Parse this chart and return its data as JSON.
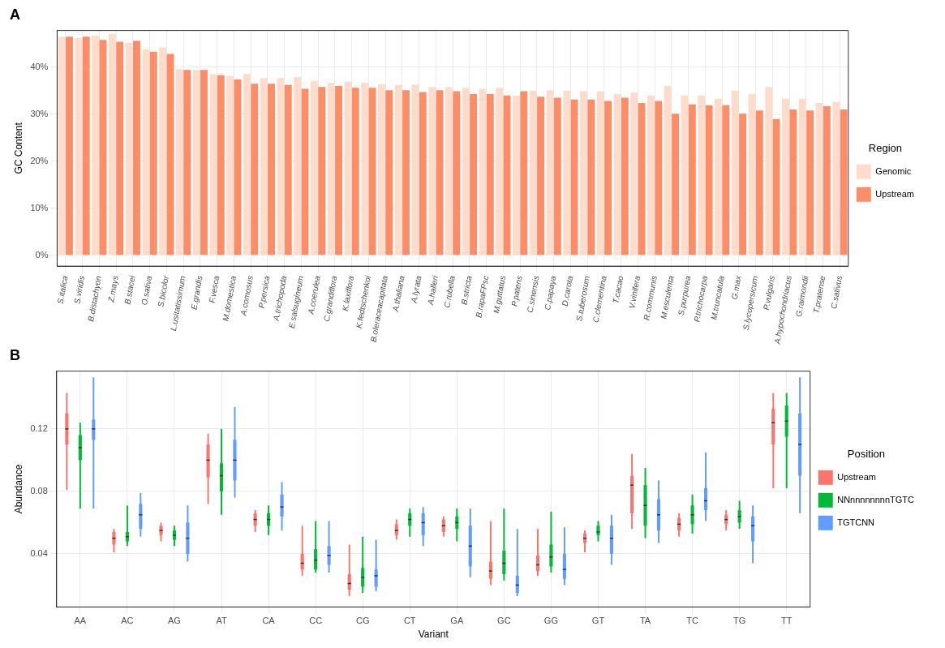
{
  "chart_data": [
    {
      "type": "bar",
      "title": "A",
      "ylabel": "GC Content",
      "legend_title": "Region",
      "legend": "right",
      "grid": true,
      "categories": [
        "S.italica",
        "S.viridis",
        "B.distachyon",
        "Z.mays",
        "B.stacei",
        "O.sativa",
        "S.bicolor",
        "L.usitatissimum",
        "E.grandis",
        "F.vesca",
        "M.domestica",
        "A.comosus",
        "P.persica",
        "A.trichopoda",
        "E.salsugineum",
        "A.coerulea",
        "C.grandiflora",
        "K.laxiflora",
        "K.fedtschenkoi",
        "B.oleraceacapitata",
        "A.thaliana",
        "A.lyrata",
        "A.halleri",
        "C.rubella",
        "B.stricta",
        "B.rapaFPsc",
        "M.guttatus",
        "P.patens",
        "C.sinensis",
        "C.papaya",
        "D.carota",
        "S.tuberosum",
        "C.clementina",
        "T.cacao",
        "V.vinifera",
        "R.communis",
        "M.esculenta",
        "S.purpurea",
        "P.trichocarpa",
        "M.truncatula",
        "G.max",
        "S.lycopersicum",
        "P.vulgaris",
        "A.hypochondriacus",
        "G.raimondii",
        "T.pratense",
        "C.sativus"
      ],
      "ylim": [
        -2.3,
        47.8
      ],
      "yticks": [
        {
          "value": 0,
          "label": "0%"
        },
        {
          "value": 10,
          "label": "10%"
        },
        {
          "value": 20,
          "label": "20%"
        },
        {
          "value": 30,
          "label": "30%"
        },
        {
          "value": 40,
          "label": "40%"
        }
      ],
      "series": [
        {
          "name": "Genomic",
          "color": "#fddccc",
          "values": [
            46.5,
            46.2,
            46.7,
            47.1,
            45.2,
            43.8,
            44.2,
            39.6,
            39.4,
            38.5,
            38.1,
            38.5,
            37.7,
            37.7,
            37.9,
            37.1,
            36.7,
            36.9,
            36.7,
            36.4,
            36.2,
            36.3,
            35.8,
            35.8,
            35.6,
            35.4,
            35.6,
            34.0,
            35.0,
            35.1,
            35.0,
            34.9,
            34.9,
            34.3,
            34.6,
            34.0,
            36.0,
            34.0,
            34.0,
            33.3,
            35.0,
            34.3,
            35.8,
            33.3,
            33.3,
            32.4,
            32.6
          ]
        },
        {
          "name": "Upstream",
          "color": "#fc8d66",
          "values": [
            46.5,
            46.5,
            45.8,
            45.4,
            45.6,
            43.3,
            42.8,
            39.4,
            39.4,
            38.3,
            37.4,
            36.5,
            36.5,
            36.2,
            35.4,
            35.8,
            36.0,
            35.6,
            35.6,
            35.1,
            35.1,
            34.7,
            35.1,
            34.9,
            34.3,
            34.3,
            34.0,
            34.9,
            33.7,
            33.5,
            33.1,
            33.1,
            32.8,
            33.5,
            32.4,
            32.8,
            30.1,
            32.1,
            31.9,
            31.9,
            30.1,
            30.8,
            29.0,
            31.0,
            30.8,
            31.7,
            31.0
          ]
        }
      ]
    },
    {
      "type": "box",
      "title": "B",
      "xlabel": "Variant",
      "ylabel": "Abundance",
      "legend_title": "Position",
      "legend": "right",
      "grid": true,
      "categories": [
        "AA",
        "AC",
        "AG",
        "AT",
        "CA",
        "CC",
        "CG",
        "CT",
        "GA",
        "GC",
        "GG",
        "GT",
        "TA",
        "TC",
        "TG",
        "TT"
      ],
      "ylim": [
        0.006,
        0.157
      ],
      "yticks": [
        0.04,
        0.08,
        0.12
      ],
      "series": [
        {
          "name": "Upstream",
          "color": "#f8766d",
          "boxes": [
            {
              "low": 0.081,
              "q1": 0.11,
              "median": 0.12,
              "q3": 0.13,
              "high": 0.143
            },
            {
              "low": 0.041,
              "q1": 0.046,
              "median": 0.05,
              "q3": 0.054,
              "high": 0.056
            },
            {
              "low": 0.048,
              "q1": 0.052,
              "median": 0.055,
              "q3": 0.058,
              "high": 0.06
            },
            {
              "low": 0.072,
              "q1": 0.089,
              "median": 0.1,
              "q3": 0.11,
              "high": 0.117
            },
            {
              "low": 0.054,
              "q1": 0.058,
              "median": 0.062,
              "q3": 0.066,
              "high": 0.068
            },
            {
              "low": 0.026,
              "q1": 0.03,
              "median": 0.034,
              "q3": 0.04,
              "high": 0.058
            },
            {
              "low": 0.013,
              "q1": 0.017,
              "median": 0.021,
              "q3": 0.027,
              "high": 0.046
            },
            {
              "low": 0.049,
              "q1": 0.052,
              "median": 0.055,
              "q3": 0.059,
              "high": 0.062
            },
            {
              "low": 0.051,
              "q1": 0.054,
              "median": 0.058,
              "q3": 0.062,
              "high": 0.064
            },
            {
              "low": 0.02,
              "q1": 0.024,
              "median": 0.029,
              "q3": 0.035,
              "high": 0.061
            },
            {
              "low": 0.026,
              "q1": 0.029,
              "median": 0.033,
              "q3": 0.039,
              "high": 0.056
            },
            {
              "low": 0.041,
              "q1": 0.047,
              "median": 0.05,
              "q3": 0.053,
              "high": 0.055
            },
            {
              "low": 0.056,
              "q1": 0.066,
              "median": 0.084,
              "q3": 0.09,
              "high": 0.104
            },
            {
              "low": 0.051,
              "q1": 0.055,
              "median": 0.059,
              "q3": 0.063,
              "high": 0.066
            },
            {
              "low": 0.055,
              "q1": 0.059,
              "median": 0.062,
              "q3": 0.065,
              "high": 0.068
            },
            {
              "low": 0.082,
              "q1": 0.11,
              "median": 0.124,
              "q3": 0.133,
              "high": 0.143
            }
          ]
        },
        {
          "name": "NNnnnnnnnnTGTC",
          "color": "#00ba38",
          "boxes": [
            {
              "low": 0.069,
              "q1": 0.1,
              "median": 0.108,
              "q3": 0.116,
              "high": 0.124
            },
            {
              "low": 0.045,
              "q1": 0.048,
              "median": 0.051,
              "q3": 0.054,
              "high": 0.071
            },
            {
              "low": 0.045,
              "q1": 0.049,
              "median": 0.052,
              "q3": 0.055,
              "high": 0.058
            },
            {
              "low": 0.065,
              "q1": 0.08,
              "median": 0.09,
              "q3": 0.098,
              "high": 0.12
            },
            {
              "low": 0.052,
              "q1": 0.058,
              "median": 0.062,
              "q3": 0.066,
              "high": 0.071
            },
            {
              "low": 0.028,
              "q1": 0.03,
              "median": 0.036,
              "q3": 0.043,
              "high": 0.061
            },
            {
              "low": 0.015,
              "q1": 0.019,
              "median": 0.025,
              "q3": 0.031,
              "high": 0.051
            },
            {
              "low": 0.051,
              "q1": 0.058,
              "median": 0.062,
              "q3": 0.066,
              "high": 0.069
            },
            {
              "low": 0.048,
              "q1": 0.056,
              "median": 0.06,
              "q3": 0.064,
              "high": 0.069
            },
            {
              "low": 0.023,
              "q1": 0.027,
              "median": 0.034,
              "q3": 0.042,
              "high": 0.069
            },
            {
              "low": 0.028,
              "q1": 0.032,
              "median": 0.038,
              "q3": 0.046,
              "high": 0.067
            },
            {
              "low": 0.048,
              "q1": 0.052,
              "median": 0.054,
              "q3": 0.058,
              "high": 0.061
            },
            {
              "low": 0.05,
              "q1": 0.058,
              "median": 0.071,
              "q3": 0.084,
              "high": 0.095
            },
            {
              "low": 0.053,
              "q1": 0.059,
              "median": 0.065,
              "q3": 0.071,
              "high": 0.078
            },
            {
              "low": 0.056,
              "q1": 0.06,
              "median": 0.064,
              "q3": 0.068,
              "high": 0.074
            },
            {
              "low": 0.082,
              "q1": 0.115,
              "median": 0.125,
              "q3": 0.135,
              "high": 0.143
            }
          ]
        },
        {
          "name": "TGTCNN",
          "color": "#619cff",
          "boxes": [
            {
              "low": 0.069,
              "q1": 0.113,
              "median": 0.12,
              "q3": 0.126,
              "high": 0.153
            },
            {
              "low": 0.051,
              "q1": 0.056,
              "median": 0.065,
              "q3": 0.072,
              "high": 0.079
            },
            {
              "low": 0.035,
              "q1": 0.04,
              "median": 0.05,
              "q3": 0.06,
              "high": 0.071
            },
            {
              "low": 0.076,
              "q1": 0.087,
              "median": 0.1,
              "q3": 0.113,
              "high": 0.134
            },
            {
              "low": 0.055,
              "q1": 0.064,
              "median": 0.07,
              "q3": 0.078,
              "high": 0.086
            },
            {
              "low": 0.028,
              "q1": 0.033,
              "median": 0.039,
              "q3": 0.045,
              "high": 0.061
            },
            {
              "low": 0.016,
              "q1": 0.019,
              "median": 0.026,
              "q3": 0.03,
              "high": 0.049
            },
            {
              "low": 0.045,
              "q1": 0.052,
              "median": 0.06,
              "q3": 0.066,
              "high": 0.07
            },
            {
              "low": 0.025,
              "q1": 0.032,
              "median": 0.045,
              "q3": 0.058,
              "high": 0.069
            },
            {
              "low": 0.013,
              "q1": 0.015,
              "median": 0.02,
              "q3": 0.026,
              "high": 0.056
            },
            {
              "low": 0.02,
              "q1": 0.024,
              "median": 0.03,
              "q3": 0.04,
              "high": 0.057
            },
            {
              "low": 0.033,
              "q1": 0.04,
              "median": 0.05,
              "q3": 0.058,
              "high": 0.065
            },
            {
              "low": 0.047,
              "q1": 0.055,
              "median": 0.065,
              "q3": 0.075,
              "high": 0.087
            },
            {
              "low": 0.061,
              "q1": 0.068,
              "median": 0.074,
              "q3": 0.082,
              "high": 0.105
            },
            {
              "low": 0.034,
              "q1": 0.048,
              "median": 0.058,
              "q3": 0.064,
              "high": 0.071
            },
            {
              "low": 0.066,
              "q1": 0.09,
              "median": 0.11,
              "q3": 0.13,
              "high": 0.153
            }
          ]
        }
      ]
    }
  ]
}
